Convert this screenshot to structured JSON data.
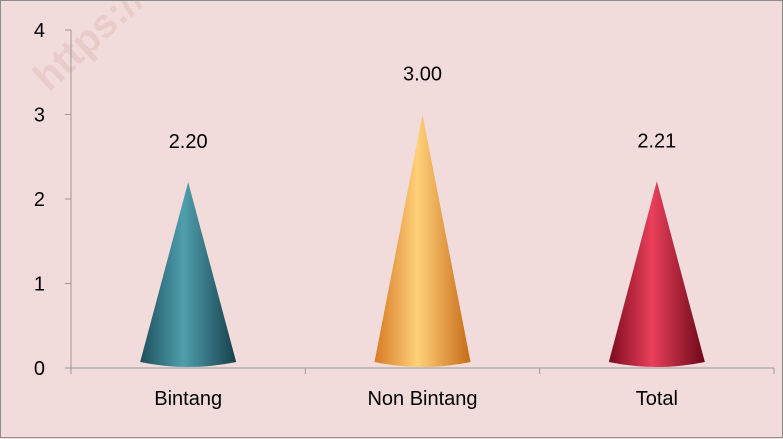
{
  "watermark": "https://",
  "chart_data": {
    "type": "bar",
    "shape": "cone",
    "categories": [
      "Bintang",
      "Non Bintang",
      "Total"
    ],
    "values": [
      2.2,
      3.0,
      2.21
    ],
    "data_labels": [
      "2.20",
      "3.00",
      "2.21"
    ],
    "yticks": [
      "0",
      "1",
      "2",
      "3",
      "4"
    ],
    "ylim": [
      0,
      4
    ],
    "grid": false,
    "legend": "none",
    "colors": {
      "Bintang": [
        "#1e4f5c",
        "#4f9fae",
        "#17404b"
      ],
      "Non Bintang": [
        "#d77a24",
        "#ffd07a",
        "#c86a17"
      ],
      "Total": [
        "#7d0b1e",
        "#ea3f5b",
        "#6b0818"
      ]
    },
    "background": "#f2dcdb"
  }
}
